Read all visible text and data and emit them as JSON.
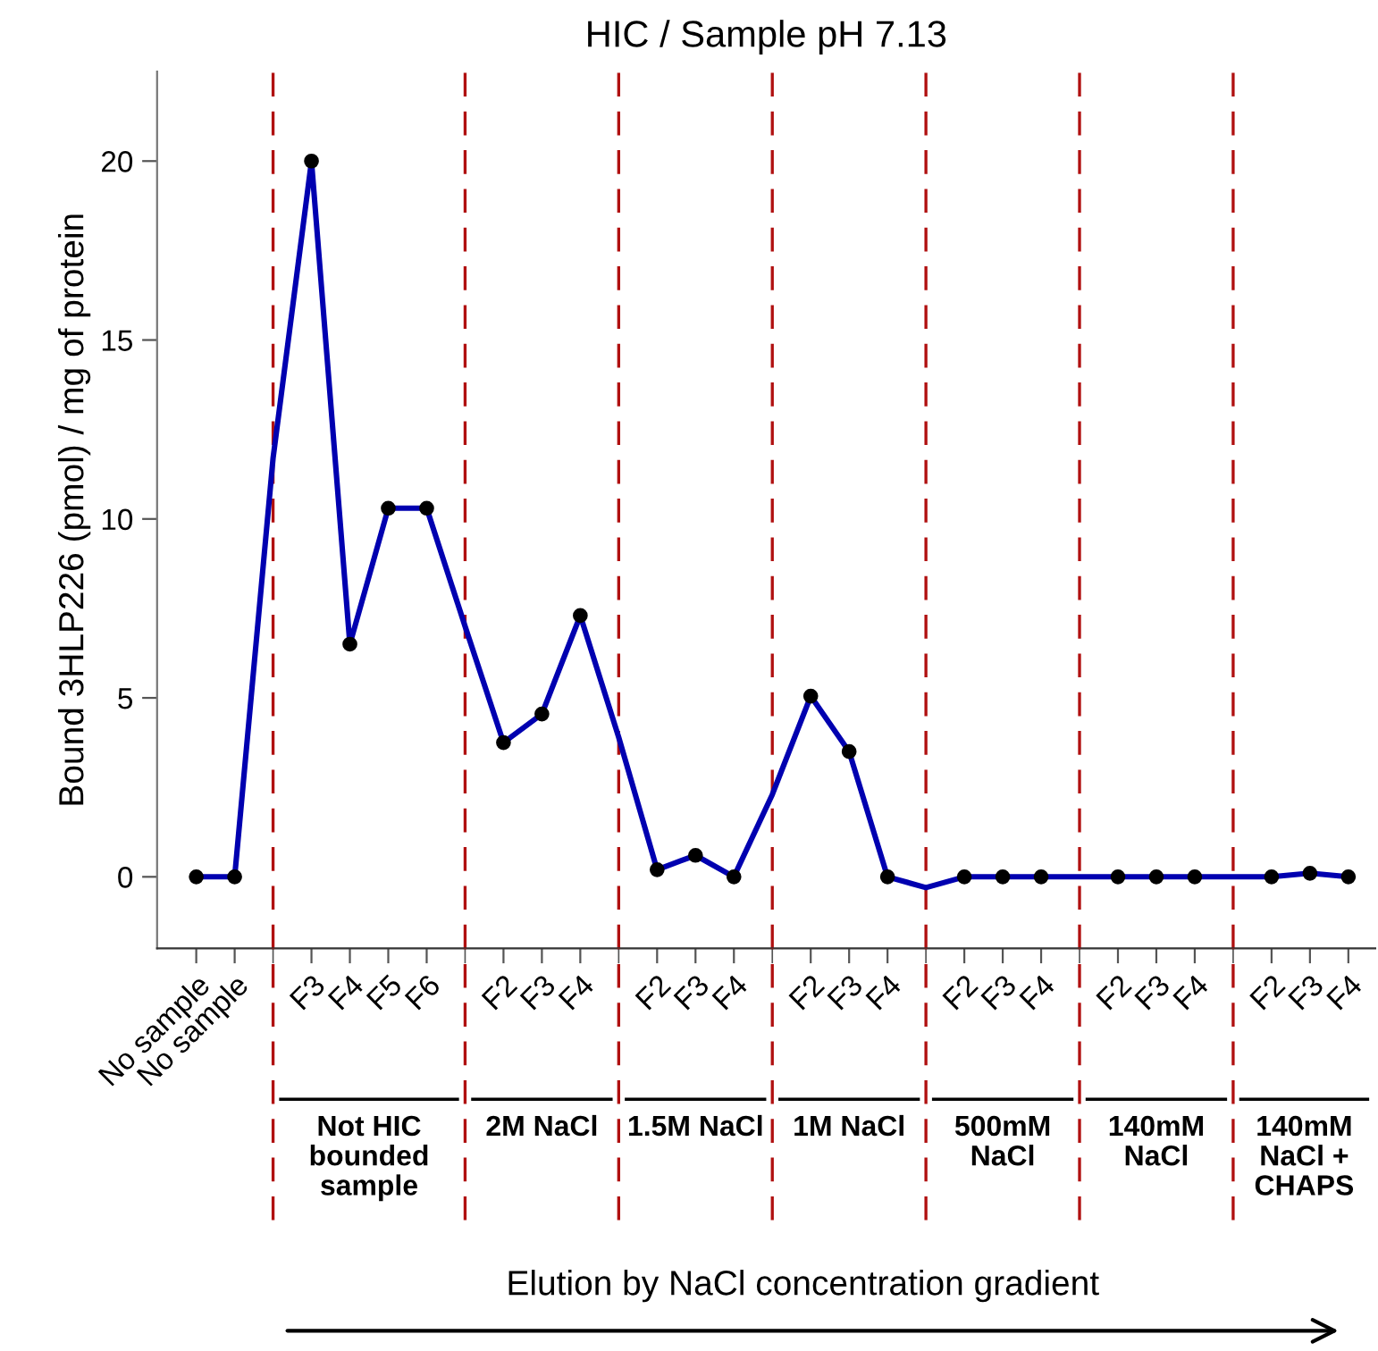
{
  "chart_data": {
    "type": "line",
    "title": "HIC / Sample pH 7.13",
    "ylabel": "Bound 3HLP226 (pmol) / mg of protein",
    "categories": [
      "No sample",
      "No sample",
      null,
      "F3",
      "F4",
      "F5",
      "F6",
      null,
      "F2",
      "F3",
      "F4",
      null,
      "F2",
      "F3",
      "F4",
      null,
      "F2",
      "F3",
      "F4",
      null,
      "F2",
      "F3",
      "F4",
      null,
      "F2",
      "F3",
      "F4",
      null,
      "F2",
      "F3",
      "F4"
    ],
    "series": [
      {
        "color": "#0000b0",
        "values": [
          0,
          0,
          11.7,
          20,
          6.5,
          10.3,
          10.3,
          7,
          3.75,
          4.55,
          7.3,
          3.9,
          0.2,
          0.6,
          0,
          2.3,
          5.05,
          3.5,
          0,
          -0.3,
          0,
          0,
          0,
          0,
          0,
          0,
          0,
          0,
          0,
          0.1,
          0
        ]
      }
    ],
    "marker": "circle",
    "ylim": [
      -2,
      22.5
    ],
    "yticks": [
      0,
      5,
      10,
      15,
      20
    ],
    "annotations": [
      "Not HIC\nbounded\nsample",
      "2M NaCl",
      "1.5M NaCl",
      "1M NaCl",
      "500mM\nNaCl",
      "140mM\nNaCl",
      "140mM\nNaCl +\nCHAPS",
      "Elution by NaCl concentration gradient"
    ],
    "grid": "x",
    "legend": false
  }
}
